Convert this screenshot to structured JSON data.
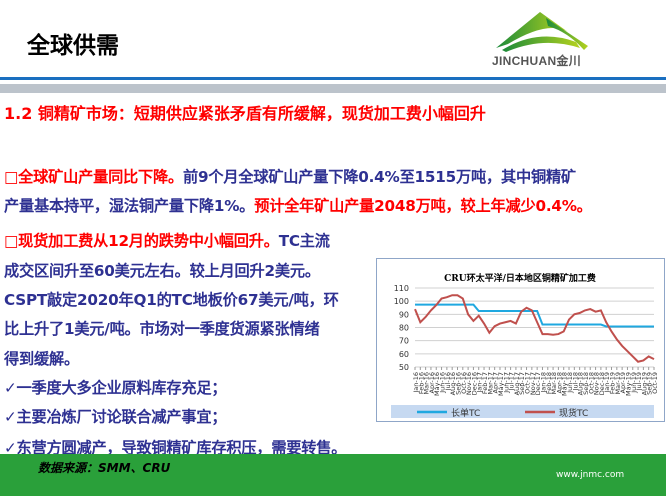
{
  "header": {
    "title": "全球供需",
    "logo_text": "JINCHUAN金川"
  },
  "section_title": "1.2 铜精矿市场：短期供应紧张矛盾有所缓解，现货加工费小幅回升",
  "body_lines": [
    [
      {
        "t": "□全球矿山产量同比下降。",
        "red": true
      },
      {
        "t": "前9个月全球矿山产量下降0.4%至1515万吨，其中铜精矿",
        "red": false
      }
    ],
    [
      {
        "t": "产量基本持平，湿法铜产量下降1%。",
        "red": false
      },
      {
        "t": "预计全年矿山产量2048万吨，较上年减少0.4%。",
        "red": true
      }
    ],
    [
      {
        "t": "□现货加工费从12月的跌势中小幅回升。",
        "red": true
      },
      {
        "t": "TC主流",
        "red": false
      }
    ],
    [
      {
        "t": "成交区间升至60美元左右。较上月回升2美元。",
        "red": false
      }
    ],
    [
      {
        "t": "CSPT敲定2020年Q1的TC地板价67美元/吨，环",
        "red": false
      }
    ],
    [
      {
        "t": "比上升了1美元/吨。市场对一季度货源紧张情绪",
        "red": false
      }
    ],
    [
      {
        "t": "得到缓解。",
        "red": false
      }
    ],
    [
      {
        "t": "✓一季度大多企业原料库存充足；",
        "red": false
      }
    ],
    [
      {
        "t": "✓主要冶炼厂讨论联合减产事宜；",
        "red": false
      }
    ],
    [
      {
        "t": "✓东营方圆减产，导致铜精矿库存积压，需要转售。",
        "red": false
      }
    ]
  ],
  "footer": {
    "source": "数据来源：SMM、CRU",
    "url": "www.jnmc.com"
  },
  "chart_data": {
    "type": "line",
    "title": "CRU环太平洋/日本地区铜精矿加工费",
    "xlabel": "",
    "ylabel": "",
    "ylim": [
      50,
      110
    ],
    "yticks": [
      50,
      60,
      70,
      80,
      90,
      100,
      110
    ],
    "grid": true,
    "legend": "bottom",
    "categories": [
      "Jan-16",
      "Feb-16",
      "Mar-16",
      "Apr-16",
      "May-16",
      "Jun-16",
      "Jul-16",
      "Aug-16",
      "Sep-16",
      "Oct-16",
      "Nov-16",
      "Dec-16",
      "Jan-17",
      "Feb-17",
      "Mar-17",
      "Apr-17",
      "May-17",
      "Jun-17",
      "Jul-17",
      "Aug-17",
      "Sep-17",
      "Oct-17",
      "Nov-17",
      "Dec-17",
      "Jan-18",
      "Feb-18",
      "Mar-18",
      "Apr-18",
      "May-18",
      "Jun-18",
      "Jul-18",
      "Aug-18",
      "Sep-18",
      "Oct-18",
      "Nov-18",
      "Dec-18",
      "Jan-19",
      "Feb-19",
      "Mar-19",
      "Apr-19",
      "May-19",
      "Jun-19",
      "Jul-19",
      "Aug-19",
      "Sep-19",
      "Oct-19"
    ],
    "series": [
      {
        "name": "长单TC",
        "color": "#1fa8e0",
        "values": [
          97.35,
          97.35,
          97.35,
          97.35,
          97.35,
          97.35,
          97.35,
          97.35,
          97.35,
          97.35,
          97.35,
          97.35,
          92.5,
          92.5,
          92.5,
          92.5,
          92.5,
          92.5,
          92.5,
          92.5,
          92.5,
          92.5,
          92.5,
          92.5,
          82.25,
          82.25,
          82.25,
          82.25,
          82.25,
          82.25,
          82.25,
          82.25,
          82.25,
          82.25,
          82.25,
          82.25,
          80.8,
          80.8,
          80.8,
          80.8,
          80.8,
          80.8,
          80.8,
          80.8,
          80.8,
          80.8
        ]
      },
      {
        "name": "现货TC",
        "color": "#c0504d",
        "values": [
          94,
          84,
          88,
          93,
          97,
          102,
          103,
          104.5,
          104.5,
          102,
          90,
          85,
          89,
          83,
          76,
          81,
          83,
          84,
          85,
          83,
          92,
          95,
          93,
          84,
          75,
          75,
          74.5,
          75,
          77,
          86,
          90,
          91,
          93,
          94,
          92,
          93,
          84,
          77,
          71,
          66,
          62,
          58,
          54,
          55,
          58,
          56
        ]
      }
    ]
  }
}
